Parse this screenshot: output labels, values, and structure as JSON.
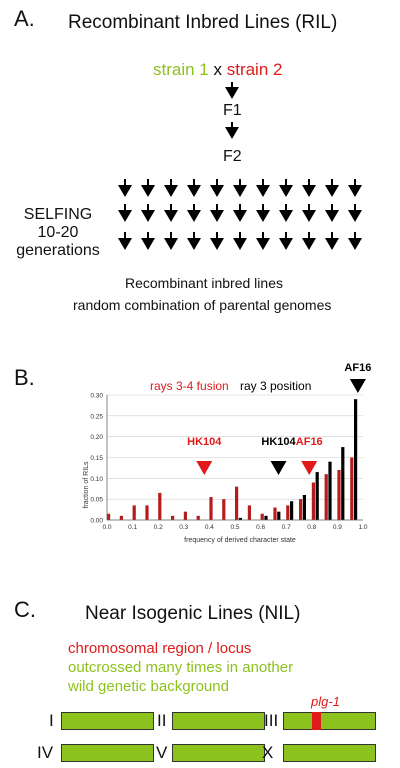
{
  "panel_a": {
    "letter": "A.",
    "title": "Recombinant Inbred Lines (RIL)",
    "strain1": "strain 1",
    "cross": "x",
    "strain2": "strain 2",
    "f1": "F1",
    "f2": "F2",
    "selfing_line1": "SELFING",
    "selfing_line2": "10-20",
    "selfing_line3": "generations",
    "result_line1": "Recombinant inbred lines",
    "result_line2": "random combination of parental genomes"
  },
  "panel_b": {
    "letter": "B."
  },
  "panel_c": {
    "letter": "C.",
    "title": "Near Isogenic Lines (NIL)",
    "red_line": "chromosomal region / locus",
    "green_line1": "outcrossed many times in another",
    "green_line2": "wild genetic background",
    "locus_label": "plg-1",
    "chromosomes": [
      "I",
      "II",
      "III",
      "IV",
      "V",
      "X"
    ]
  },
  "colors": {
    "green": "#8cc21e",
    "red": "#e01a1a",
    "black": "#000000"
  },
  "chart_data": {
    "type": "bar",
    "title": "",
    "xlabel": "frequency of derived character state",
    "ylabel": "fraction of RILs",
    "xlim": [
      0.0,
      1.0
    ],
    "ylim": [
      0.0,
      0.3
    ],
    "x_ticks": [
      "0.0",
      "0.1",
      "0.2",
      "0.3",
      "0.4",
      "0.5",
      "0.6",
      "0.7",
      "0.8",
      "0.9",
      "1.0"
    ],
    "y_ticks": [
      "0.00",
      "0.05",
      "0.10",
      "0.15",
      "0.20",
      "0.25",
      "0.30"
    ],
    "series": [
      {
        "name": "rays 3-4 fusion",
        "color": "#b71c1c",
        "x": [
          0.0,
          0.05,
          0.1,
          0.15,
          0.2,
          0.25,
          0.3,
          0.35,
          0.4,
          0.45,
          0.5,
          0.55,
          0.6,
          0.65,
          0.7,
          0.75,
          0.8,
          0.85,
          0.9,
          0.95
        ],
        "values": [
          0.015,
          0.01,
          0.035,
          0.035,
          0.065,
          0.01,
          0.02,
          0.01,
          0.055,
          0.05,
          0.08,
          0.035,
          0.015,
          0.03,
          0.035,
          0.05,
          0.09,
          0.11,
          0.12,
          0.15
        ]
      },
      {
        "name": "ray 3 position",
        "color": "#000000",
        "x": [
          0.0,
          0.05,
          0.1,
          0.15,
          0.2,
          0.25,
          0.3,
          0.35,
          0.4,
          0.45,
          0.5,
          0.55,
          0.6,
          0.65,
          0.7,
          0.75,
          0.8,
          0.85,
          0.9,
          0.95
        ],
        "values": [
          0.0,
          0.0,
          0.0,
          0.0,
          0.0,
          0.0,
          0.0,
          0.0,
          0.0,
          0.0,
          0.005,
          0.0,
          0.01,
          0.02,
          0.045,
          0.06,
          0.115,
          0.14,
          0.175,
          0.29
        ]
      }
    ],
    "markers": [
      {
        "label": "HK104",
        "color": "#e01a1a",
        "x": 0.38,
        "series": "rays 3-4 fusion"
      },
      {
        "label": "HK104",
        "color": "#000000",
        "x": 0.67,
        "series": "ray 3 position"
      },
      {
        "label": "AF16",
        "color": "#e01a1a",
        "x": 0.79,
        "series": "rays 3-4 fusion"
      },
      {
        "label": "AF16",
        "color": "#000000",
        "x": 0.98,
        "series": "ray 3 position"
      }
    ],
    "legend_labels": [
      "rays 3-4 fusion",
      "ray 3 position"
    ],
    "grid": "horizontal"
  }
}
